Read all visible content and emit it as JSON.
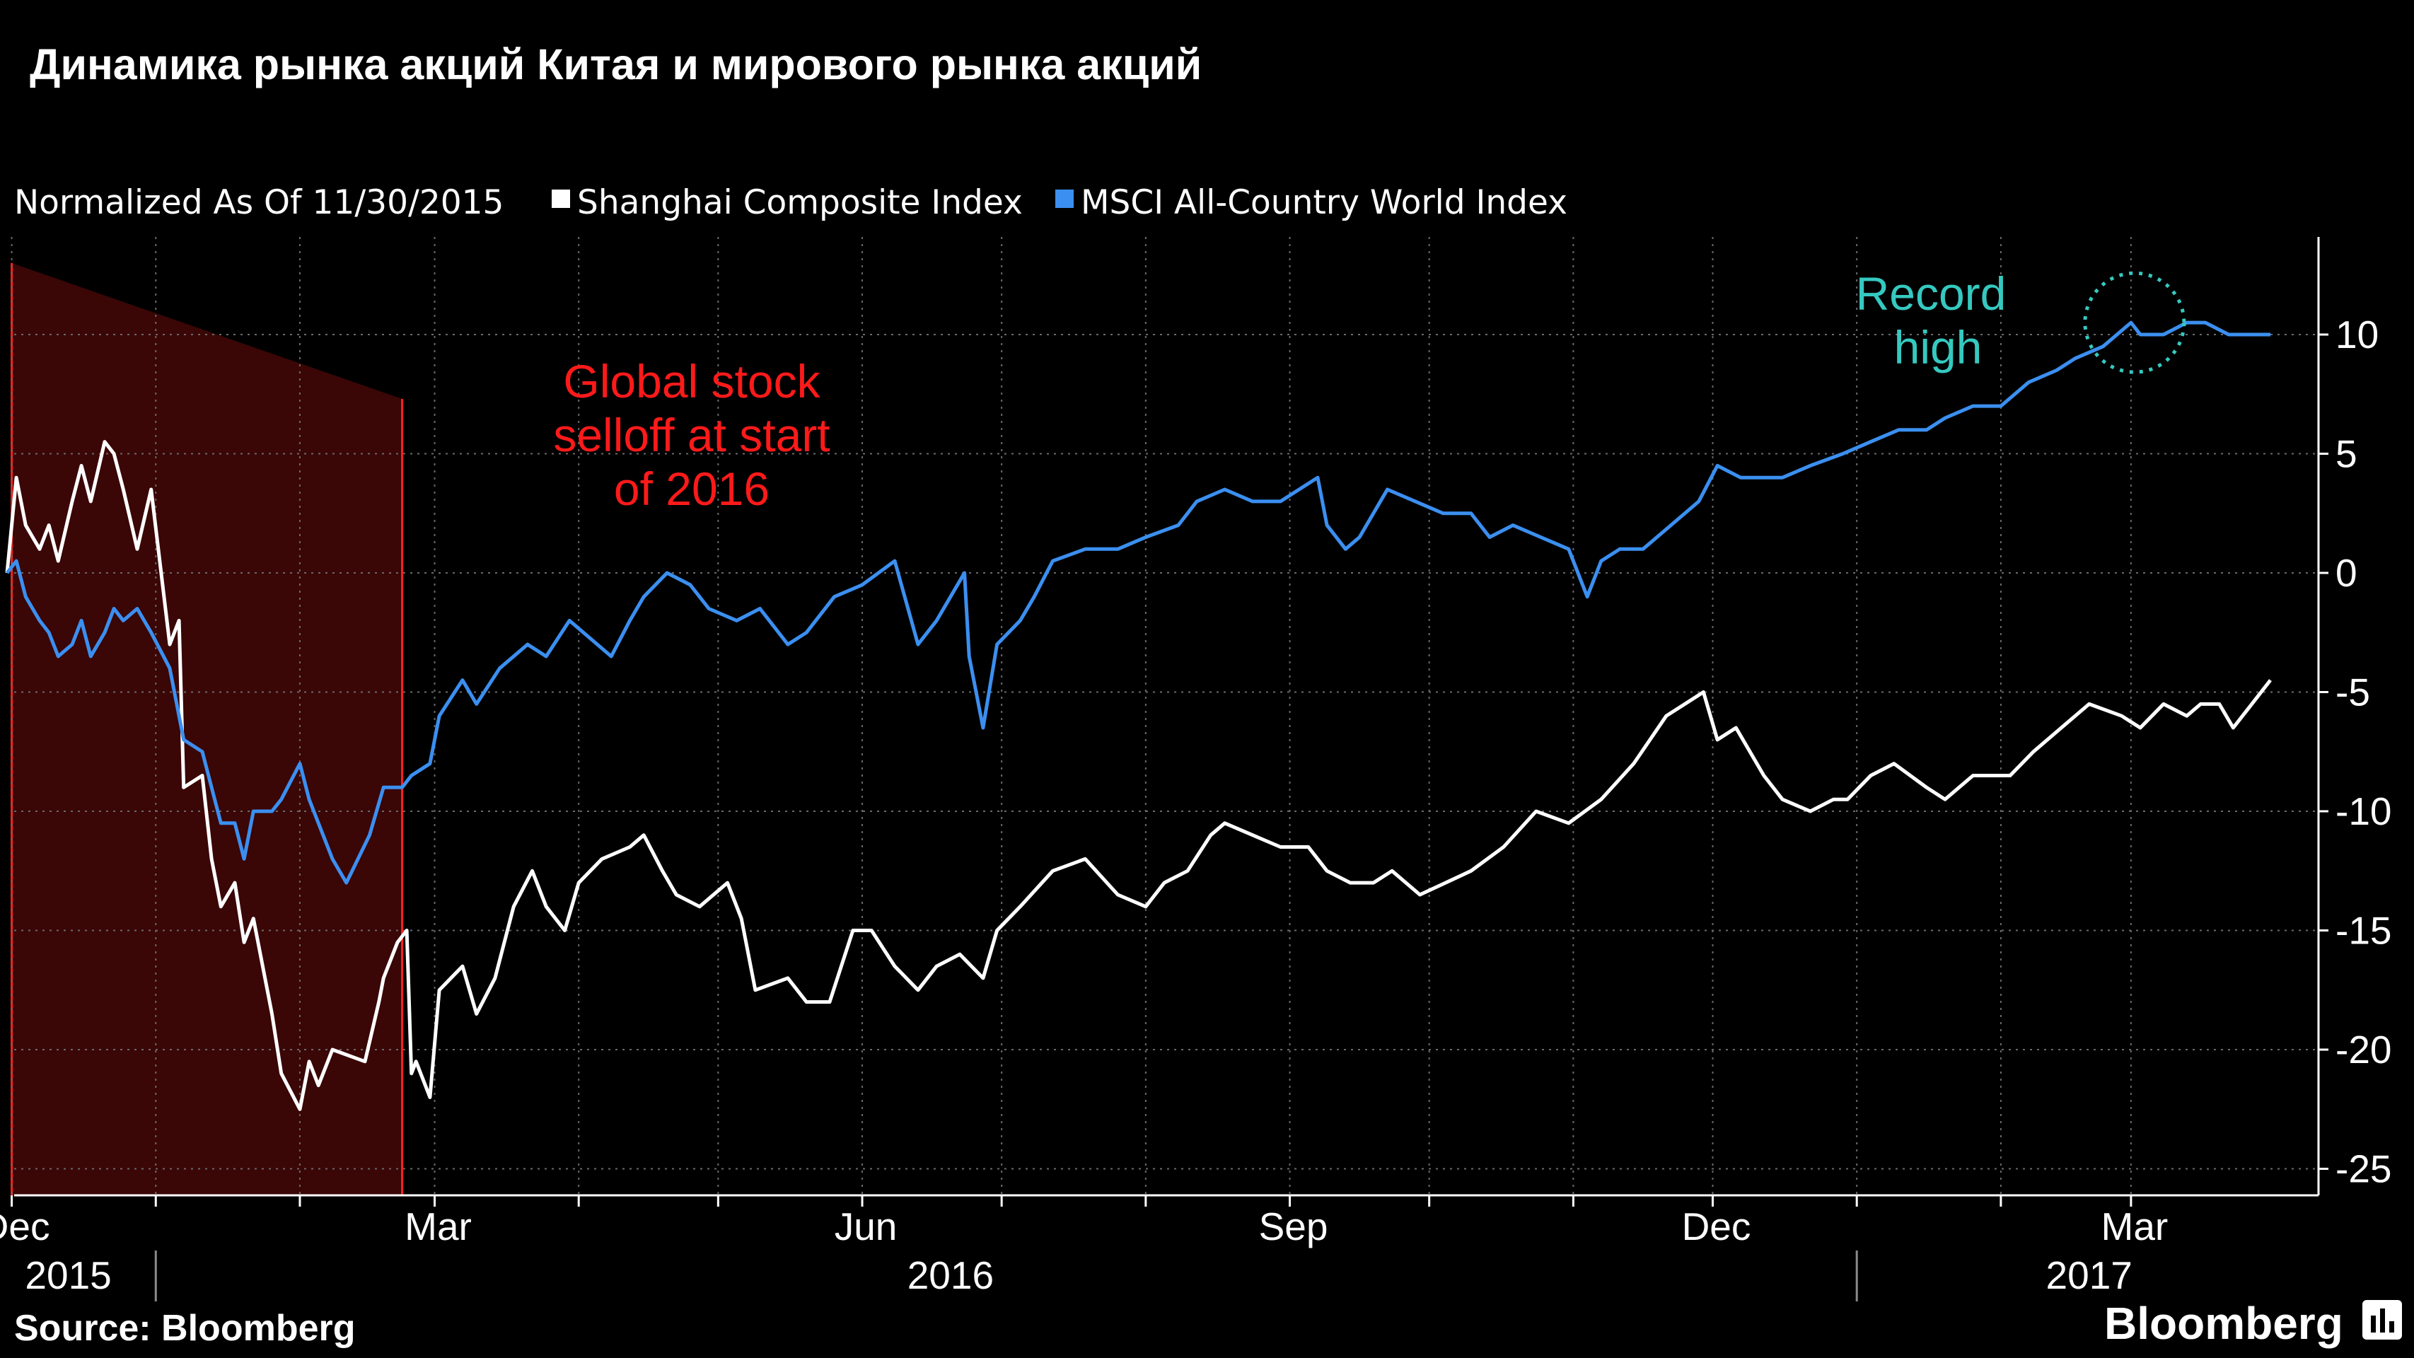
{
  "title": "Динамика рынка акций Китая и мирового рынка акций",
  "legend": {
    "note": "Normalized As Of 11/30/2015",
    "items": [
      {
        "label": "Shanghai Composite Index",
        "color": "#ffffff"
      },
      {
        "label": "MSCI All-Country World Index",
        "color": "#3b8ff0"
      }
    ]
  },
  "annotations": {
    "selloff": [
      "Global stock",
      "selloff at start",
      "of 2016"
    ],
    "selloff_color": "#ff1a1a",
    "record": [
      "Record",
      "high"
    ],
    "record_color": "#35c9c0"
  },
  "footer": {
    "source": "Source:  Bloomberg",
    "brand": "Bloomberg"
  },
  "chart_data": {
    "type": "line",
    "x_start": "2015-11-30",
    "x_end": "2017-03-31",
    "ylim": [
      -26,
      14
    ],
    "yticks": [
      10,
      5,
      0,
      -5,
      -10,
      -15,
      -20,
      -25
    ],
    "ytick_labels": [
      "10",
      "5",
      "0",
      "-5",
      "-10",
      "-15",
      "-20",
      "-25"
    ],
    "month_labels": [
      {
        "label": "Dec",
        "date": "2015-12-01"
      },
      {
        "label": "Mar",
        "date": "2016-03-01"
      },
      {
        "label": "Jun",
        "date": "2016-06-01"
      },
      {
        "label": "Sep",
        "date": "2016-09-01"
      },
      {
        "label": "Dec",
        "date": "2016-12-01"
      },
      {
        "label": "Mar",
        "date": "2017-03-01"
      }
    ],
    "year_labels": [
      {
        "label": "2015",
        "date": "2015-12-01"
      },
      {
        "label": "2016",
        "date": "2016-06-20"
      },
      {
        "label": "2017",
        "date": "2017-02-20"
      }
    ],
    "grid": true,
    "legend_position": "top-left",
    "highlight_region": {
      "start": "2015-12-01",
      "end": "2016-02-23"
    },
    "record_high_date": "2017-03-01",
    "series": [
      {
        "name": "Shanghai Composite Index",
        "color": "#ffffff",
        "points": [
          [
            "2015-11-30",
            0
          ],
          [
            "2015-12-02",
            4
          ],
          [
            "2015-12-04",
            2
          ],
          [
            "2015-12-07",
            1
          ],
          [
            "2015-12-09",
            2
          ],
          [
            "2015-12-11",
            0.5
          ],
          [
            "2015-12-14",
            3
          ],
          [
            "2015-12-16",
            4.5
          ],
          [
            "2015-12-18",
            3
          ],
          [
            "2015-12-21",
            5.5
          ],
          [
            "2015-12-23",
            5
          ],
          [
            "2015-12-25",
            3.5
          ],
          [
            "2015-12-28",
            1
          ],
          [
            "2015-12-31",
            3.5
          ],
          [
            "2016-01-04",
            -3
          ],
          [
            "2016-01-06",
            -2
          ],
          [
            "2016-01-07",
            -9
          ],
          [
            "2016-01-11",
            -8.5
          ],
          [
            "2016-01-13",
            -12
          ],
          [
            "2016-01-15",
            -14
          ],
          [
            "2016-01-18",
            -13
          ],
          [
            "2016-01-20",
            -15.5
          ],
          [
            "2016-01-22",
            -14.5
          ],
          [
            "2016-01-26",
            -18.5
          ],
          [
            "2016-01-28",
            -21
          ],
          [
            "2016-02-01",
            -22.5
          ],
          [
            "2016-02-03",
            -20.5
          ],
          [
            "2016-02-05",
            -21.5
          ],
          [
            "2016-02-08",
            -20
          ],
          [
            "2016-02-15",
            -20.5
          ],
          [
            "2016-02-18",
            -18
          ],
          [
            "2016-02-19",
            -17
          ],
          [
            "2016-02-22",
            -15.5
          ],
          [
            "2016-02-24",
            -15
          ],
          [
            "2016-02-25",
            -21
          ],
          [
            "2016-02-26",
            -20.5
          ],
          [
            "2016-02-29",
            -22
          ],
          [
            "2016-03-02",
            -17.5
          ],
          [
            "2016-03-07",
            -16.5
          ],
          [
            "2016-03-10",
            -18.5
          ],
          [
            "2016-03-14",
            -17
          ],
          [
            "2016-03-18",
            -14
          ],
          [
            "2016-03-22",
            -12.5
          ],
          [
            "2016-03-25",
            -14
          ],
          [
            "2016-03-29",
            -15
          ],
          [
            "2016-04-01",
            -13
          ],
          [
            "2016-04-06",
            -12
          ],
          [
            "2016-04-12",
            -11.5
          ],
          [
            "2016-04-15",
            -11
          ],
          [
            "2016-04-19",
            -12.5
          ],
          [
            "2016-04-22",
            -13.5
          ],
          [
            "2016-04-27",
            -14
          ],
          [
            "2016-05-03",
            -13
          ],
          [
            "2016-05-06",
            -14.5
          ],
          [
            "2016-05-09",
            -17.5
          ],
          [
            "2016-05-16",
            -17
          ],
          [
            "2016-05-20",
            -18
          ],
          [
            "2016-05-25",
            -18
          ],
          [
            "2016-05-30",
            -15
          ],
          [
            "2016-06-03",
            -15
          ],
          [
            "2016-06-08",
            -16.5
          ],
          [
            "2016-06-13",
            -17.5
          ],
          [
            "2016-06-17",
            -16.5
          ],
          [
            "2016-06-22",
            -16
          ],
          [
            "2016-06-27",
            -17
          ],
          [
            "2016-06-30",
            -15
          ],
          [
            "2016-07-05",
            -14
          ],
          [
            "2016-07-12",
            -12.5
          ],
          [
            "2016-07-19",
            -12
          ],
          [
            "2016-07-26",
            -13.5
          ],
          [
            "2016-08-01",
            -14
          ],
          [
            "2016-08-05",
            -13
          ],
          [
            "2016-08-10",
            -12.5
          ],
          [
            "2016-08-15",
            -11
          ],
          [
            "2016-08-18",
            -10.5
          ],
          [
            "2016-08-24",
            -11
          ],
          [
            "2016-08-30",
            -11.5
          ],
          [
            "2016-09-05",
            -11.5
          ],
          [
            "2016-09-09",
            -12.5
          ],
          [
            "2016-09-14",
            -13
          ],
          [
            "2016-09-19",
            -13
          ],
          [
            "2016-09-23",
            -12.5
          ],
          [
            "2016-09-29",
            -13.5
          ],
          [
            "2016-10-10",
            -12.5
          ],
          [
            "2016-10-17",
            -11.5
          ],
          [
            "2016-10-24",
            -10
          ],
          [
            "2016-10-31",
            -10.5
          ],
          [
            "2016-11-07",
            -9.5
          ],
          [
            "2016-11-14",
            -8
          ],
          [
            "2016-11-21",
            -6
          ],
          [
            "2016-11-25",
            -5.5
          ],
          [
            "2016-11-29",
            -5
          ],
          [
            "2016-12-02",
            -7
          ],
          [
            "2016-12-06",
            -6.5
          ],
          [
            "2016-12-12",
            -8.5
          ],
          [
            "2016-12-16",
            -9.5
          ],
          [
            "2016-12-22",
            -10
          ],
          [
            "2016-12-27",
            -9.5
          ],
          [
            "2016-12-30",
            -9.5
          ],
          [
            "2017-01-04",
            -8.5
          ],
          [
            "2017-01-09",
            -8
          ],
          [
            "2017-01-16",
            -9
          ],
          [
            "2017-01-20",
            -9.5
          ],
          [
            "2017-01-26",
            -8.5
          ],
          [
            "2017-02-03",
            -8.5
          ],
          [
            "2017-02-08",
            -7.5
          ],
          [
            "2017-02-14",
            -6.5
          ],
          [
            "2017-02-20",
            -5.5
          ],
          [
            "2017-02-27",
            -6
          ],
          [
            "2017-03-03",
            -6.5
          ],
          [
            "2017-03-08",
            -5.5
          ],
          [
            "2017-03-13",
            -6
          ],
          [
            "2017-03-16",
            -5.5
          ],
          [
            "2017-03-20",
            -5.5
          ],
          [
            "2017-03-23",
            -6.5
          ],
          [
            "2017-03-27",
            -5.5
          ],
          [
            "2017-03-31",
            -4.5
          ]
        ]
      },
      {
        "name": "MSCI All-Country World Index",
        "color": "#3b8ff0",
        "points": [
          [
            "2015-11-30",
            0
          ],
          [
            "2015-12-02",
            0.5
          ],
          [
            "2015-12-04",
            -1
          ],
          [
            "2015-12-07",
            -2
          ],
          [
            "2015-12-09",
            -2.5
          ],
          [
            "2015-12-11",
            -3.5
          ],
          [
            "2015-12-14",
            -3
          ],
          [
            "2015-12-16",
            -2
          ],
          [
            "2015-12-18",
            -3.5
          ],
          [
            "2015-12-21",
            -2.5
          ],
          [
            "2015-12-23",
            -1.5
          ],
          [
            "2015-12-25",
            -2
          ],
          [
            "2015-12-28",
            -1.5
          ],
          [
            "2015-12-31",
            -2.5
          ],
          [
            "2016-01-04",
            -4
          ],
          [
            "2016-01-07",
            -7
          ],
          [
            "2016-01-11",
            -7.5
          ],
          [
            "2016-01-13",
            -9
          ],
          [
            "2016-01-15",
            -10.5
          ],
          [
            "2016-01-18",
            -10.5
          ],
          [
            "2016-01-20",
            -12
          ],
          [
            "2016-01-22",
            -10
          ],
          [
            "2016-01-26",
            -10
          ],
          [
            "2016-01-28",
            -9.5
          ],
          [
            "2016-02-01",
            -8
          ],
          [
            "2016-02-03",
            -9.5
          ],
          [
            "2016-02-05",
            -10.5
          ],
          [
            "2016-02-08",
            -12
          ],
          [
            "2016-02-11",
            -13
          ],
          [
            "2016-02-16",
            -11
          ],
          [
            "2016-02-19",
            -9
          ],
          [
            "2016-02-23",
            -9
          ],
          [
            "2016-02-25",
            -8.5
          ],
          [
            "2016-02-29",
            -8
          ],
          [
            "2016-03-02",
            -6
          ],
          [
            "2016-03-07",
            -4.5
          ],
          [
            "2016-03-10",
            -5.5
          ],
          [
            "2016-03-15",
            -4
          ],
          [
            "2016-03-21",
            -3
          ],
          [
            "2016-03-25",
            -3.5
          ],
          [
            "2016-03-30",
            -2
          ],
          [
            "2016-04-05",
            -3
          ],
          [
            "2016-04-08",
            -3.5
          ],
          [
            "2016-04-12",
            -2
          ],
          [
            "2016-04-15",
            -1
          ],
          [
            "2016-04-20",
            0
          ],
          [
            "2016-04-25",
            -0.5
          ],
          [
            "2016-04-29",
            -1.5
          ],
          [
            "2016-05-05",
            -2
          ],
          [
            "2016-05-10",
            -1.5
          ],
          [
            "2016-05-16",
            -3
          ],
          [
            "2016-05-20",
            -2.5
          ],
          [
            "2016-05-26",
            -1
          ],
          [
            "2016-06-01",
            -0.5
          ],
          [
            "2016-06-08",
            0.5
          ],
          [
            "2016-06-13",
            -3
          ],
          [
            "2016-06-17",
            -2
          ],
          [
            "2016-06-23",
            0
          ],
          [
            "2016-06-24",
            -3.5
          ],
          [
            "2016-06-27",
            -6.5
          ],
          [
            "2016-06-30",
            -3
          ],
          [
            "2016-07-05",
            -2
          ],
          [
            "2016-07-08",
            -1
          ],
          [
            "2016-07-12",
            0.5
          ],
          [
            "2016-07-19",
            1
          ],
          [
            "2016-07-26",
            1
          ],
          [
            "2016-08-01",
            1.5
          ],
          [
            "2016-08-08",
            2
          ],
          [
            "2016-08-12",
            3
          ],
          [
            "2016-08-18",
            3.5
          ],
          [
            "2016-08-24",
            3
          ],
          [
            "2016-08-30",
            3
          ],
          [
            "2016-09-07",
            4
          ],
          [
            "2016-09-09",
            2
          ],
          [
            "2016-09-13",
            1
          ],
          [
            "2016-09-16",
            1.5
          ],
          [
            "2016-09-22",
            3.5
          ],
          [
            "2016-09-28",
            3
          ],
          [
            "2016-10-04",
            2.5
          ],
          [
            "2016-10-10",
            2.5
          ],
          [
            "2016-10-14",
            1.5
          ],
          [
            "2016-10-19",
            2
          ],
          [
            "2016-10-25",
            1.5
          ],
          [
            "2016-10-31",
            1
          ],
          [
            "2016-11-04",
            -1
          ],
          [
            "2016-11-07",
            0.5
          ],
          [
            "2016-11-11",
            1
          ],
          [
            "2016-11-16",
            1
          ],
          [
            "2016-11-22",
            2
          ],
          [
            "2016-11-28",
            3
          ],
          [
            "2016-12-02",
            4.5
          ],
          [
            "2016-12-07",
            4
          ],
          [
            "2016-12-12",
            4
          ],
          [
            "2016-12-16",
            4
          ],
          [
            "2016-12-22",
            4.5
          ],
          [
            "2016-12-29",
            5
          ],
          [
            "2017-01-04",
            5.5
          ],
          [
            "2017-01-10",
            6
          ],
          [
            "2017-01-16",
            6
          ],
          [
            "2017-01-20",
            6.5
          ],
          [
            "2017-01-26",
            7
          ],
          [
            "2017-02-01",
            7
          ],
          [
            "2017-02-07",
            8
          ],
          [
            "2017-02-13",
            8.5
          ],
          [
            "2017-02-17",
            9
          ],
          [
            "2017-02-23",
            9.5
          ],
          [
            "2017-03-01",
            10.5
          ],
          [
            "2017-03-03",
            10
          ],
          [
            "2017-03-08",
            10
          ],
          [
            "2017-03-13",
            10.5
          ],
          [
            "2017-03-17",
            10.5
          ],
          [
            "2017-03-22",
            10
          ],
          [
            "2017-03-27",
            10
          ],
          [
            "2017-03-31",
            10
          ]
        ]
      }
    ]
  }
}
